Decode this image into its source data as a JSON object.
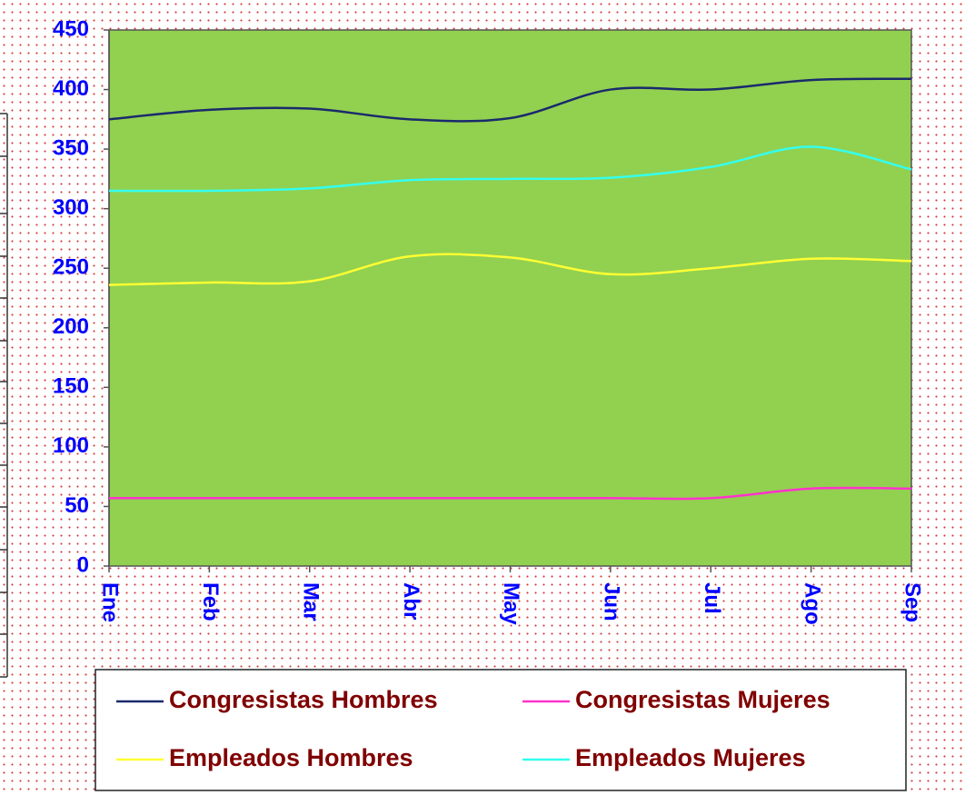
{
  "chart_data": {
    "type": "line",
    "categories": [
      "Ene",
      "Feb",
      "Mar",
      "Abr",
      "May",
      "Jun",
      "Jul",
      "Ago",
      "Sep"
    ],
    "series": [
      {
        "name": "Congresistas Hombres",
        "color": "#1a2a6c",
        "values": [
          375,
          383,
          384,
          375,
          376,
          400,
          400,
          408,
          409
        ]
      },
      {
        "name": "Congresistas Mujeres",
        "color": "#ff33cc",
        "values": [
          57,
          57,
          57,
          57,
          57,
          57,
          57,
          65,
          65
        ]
      },
      {
        "name": "Empleados Hombres",
        "color": "#ffff33",
        "values": [
          236,
          238,
          239,
          260,
          259,
          245,
          250,
          258,
          256
        ]
      },
      {
        "name": "Empleados Mujeres",
        "color": "#33ffee",
        "values": [
          315,
          315,
          317,
          324,
          325,
          326,
          335,
          352,
          333
        ]
      }
    ],
    "ylim": [
      0,
      450
    ],
    "yticks": [
      0,
      50,
      100,
      150,
      200,
      250,
      300,
      350,
      400,
      450
    ],
    "plot_color": "#92d050",
    "smooth": true,
    "legend": "bottom"
  }
}
